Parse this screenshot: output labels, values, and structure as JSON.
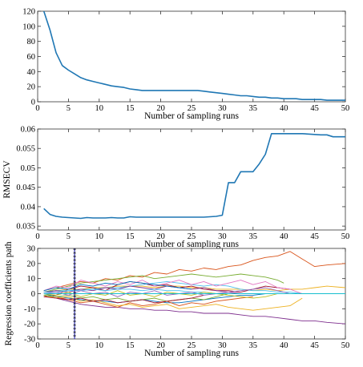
{
  "chart_data": [
    {
      "type": "line",
      "xlabel": "Number of sampling runs",
      "ylabel": "",
      "xlim": [
        0,
        50
      ],
      "ylim": [
        0,
        120
      ],
      "xticks": [
        0,
        5,
        10,
        15,
        20,
        25,
        30,
        35,
        40,
        45,
        50
      ],
      "yticks": [
        0,
        20,
        40,
        60,
        80,
        100,
        120
      ],
      "grid": false,
      "series": [
        {
          "color": "#1f77b4",
          "x": [
            1,
            2,
            3,
            4,
            5,
            6,
            7,
            8,
            9,
            10,
            11,
            12,
            13,
            14,
            15,
            16,
            17,
            18,
            19,
            20,
            21,
            22,
            23,
            24,
            25,
            26,
            27,
            28,
            29,
            30,
            31,
            32,
            33,
            34,
            35,
            36,
            37,
            38,
            39,
            40,
            41,
            42,
            43,
            44,
            45,
            46,
            47,
            48,
            49,
            50
          ],
          "y": [
            120,
            95,
            65,
            48,
            42,
            37,
            32,
            29,
            27,
            25,
            23,
            21,
            20,
            19,
            17,
            16,
            15,
            15,
            15,
            15,
            15,
            15,
            15,
            15,
            15,
            15,
            14,
            13,
            12,
            11,
            10,
            9,
            8,
            8,
            7,
            6,
            6,
            5,
            5,
            4,
            4,
            4,
            3,
            3,
            3,
            3,
            2,
            2,
            2,
            2
          ]
        }
      ]
    },
    {
      "type": "line",
      "xlabel": "Number of sampling runs",
      "ylabel": "RMSECV",
      "xlim": [
        0,
        50
      ],
      "ylim": [
        0.034,
        0.06
      ],
      "xticks": [
        0,
        5,
        10,
        15,
        20,
        25,
        30,
        35,
        40,
        45,
        50
      ],
      "yticks": [
        0.035,
        0.04,
        0.045,
        0.05,
        0.055,
        0.06
      ],
      "ytick_labels": [
        "0.035",
        "0.04",
        "0.045",
        "0.05",
        "0.055",
        "0.06"
      ],
      "grid": false,
      "series": [
        {
          "color": "#1f77b4",
          "x": [
            1,
            2,
            3,
            4,
            5,
            6,
            7,
            8,
            9,
            10,
            11,
            12,
            13,
            14,
            15,
            16,
            17,
            18,
            19,
            20,
            21,
            22,
            23,
            24,
            25,
            26,
            27,
            28,
            29,
            30,
            31,
            32,
            33,
            34,
            35,
            36,
            37,
            38,
            39,
            40,
            41,
            42,
            43,
            44,
            45,
            46,
            47,
            48,
            49,
            50
          ],
          "y": [
            0.0395,
            0.038,
            0.0375,
            0.0373,
            0.0372,
            0.0371,
            0.037,
            0.0372,
            0.0371,
            0.0371,
            0.0371,
            0.0372,
            0.0371,
            0.0371,
            0.0374,
            0.0373,
            0.0373,
            0.0373,
            0.0373,
            0.0373,
            0.0373,
            0.0373,
            0.0373,
            0.0373,
            0.0373,
            0.0373,
            0.0373,
            0.0374,
            0.0375,
            0.0378,
            0.0462,
            0.0462,
            0.049,
            0.049,
            0.049,
            0.051,
            0.0535,
            0.0588,
            0.0588,
            0.0588,
            0.0588,
            0.0588,
            0.0588,
            0.0587,
            0.0586,
            0.0585,
            0.0585,
            0.058,
            0.058,
            0.058
          ]
        }
      ]
    },
    {
      "type": "line",
      "xlabel": "Number of sampling runs",
      "ylabel": "Regression coefficients path",
      "xlim": [
        0,
        50
      ],
      "ylim": [
        -30,
        30
      ],
      "xticks": [
        0,
        5,
        10,
        15,
        20,
        25,
        30,
        35,
        40,
        45,
        50
      ],
      "yticks": [
        -30,
        -20,
        -10,
        0,
        10,
        20,
        30
      ],
      "grid": false,
      "marker_line": {
        "x": 6,
        "color": "#3333cc",
        "marker": "asterisk"
      },
      "series": [
        {
          "color": "#d95319",
          "x": [
            1,
            3,
            5,
            7,
            9,
            11,
            13,
            15,
            17,
            19,
            21,
            23,
            25,
            27,
            29,
            31,
            33,
            35,
            37,
            39,
            41,
            43,
            45,
            47,
            50
          ],
          "y": [
            2,
            4,
            6,
            8,
            7,
            10,
            9,
            12,
            11,
            14,
            13,
            16,
            15,
            17,
            16,
            18,
            19,
            22,
            24,
            25,
            28,
            23,
            18,
            19,
            20
          ]
        },
        {
          "color": "#7e2f8e",
          "x": [
            1,
            3,
            5,
            7,
            9,
            11,
            13,
            15,
            17,
            19,
            21,
            23,
            25,
            27,
            29,
            31,
            33,
            35,
            37,
            39,
            41,
            43,
            45,
            47,
            50
          ],
          "y": [
            -1,
            -3,
            -5,
            -7,
            -8,
            -9,
            -9,
            -10,
            -10,
            -11,
            -11,
            -12,
            -12,
            -13,
            -13,
            -13,
            -14,
            -15,
            -15,
            -16,
            -17,
            -18,
            -18,
            -19,
            -20
          ]
        },
        {
          "color": "#edb120",
          "x": [
            1,
            3,
            5,
            7,
            9,
            11,
            13,
            15,
            17,
            19,
            21,
            23,
            25,
            27,
            29,
            31,
            33,
            35,
            37,
            39,
            41,
            43,
            45,
            47,
            50
          ],
          "y": [
            1,
            2,
            3,
            3,
            4,
            4,
            5,
            5,
            5,
            4,
            5,
            5,
            4,
            4,
            3,
            3,
            3,
            2,
            3,
            2,
            3,
            3,
            4,
            5,
            4
          ]
        },
        {
          "color": "#77ac30",
          "x": [
            1,
            3,
            5,
            7,
            9,
            11,
            13,
            15,
            17,
            19,
            21,
            23,
            25,
            27,
            29,
            31,
            33,
            35,
            37,
            39,
            40
          ],
          "y": [
            1,
            3,
            5,
            7,
            8,
            9,
            10,
            11,
            12,
            10,
            11,
            12,
            13,
            12,
            11,
            12,
            13,
            12,
            11,
            9,
            7
          ]
        },
        {
          "color": "#a2142f",
          "x": [
            1,
            3,
            5,
            7,
            9,
            11,
            13,
            15,
            17,
            19,
            21,
            23,
            25,
            27,
            29,
            31,
            33,
            35,
            37,
            39,
            41
          ],
          "y": [
            -2,
            -1,
            3,
            5,
            4,
            2,
            6,
            8,
            7,
            5,
            6,
            4,
            5,
            3,
            2,
            2,
            1,
            3,
            5,
            4,
            3
          ]
        },
        {
          "color": "#4dbeee",
          "x": [
            1,
            3,
            5,
            7,
            9,
            11,
            13,
            15,
            17,
            19,
            21,
            23,
            25,
            27,
            29,
            31,
            33,
            35,
            37,
            39,
            41,
            43,
            45,
            47,
            50
          ],
          "y": [
            1,
            2,
            2,
            3,
            3,
            4,
            4,
            5,
            6,
            7,
            8,
            7,
            6,
            5,
            6,
            5,
            3,
            2,
            2,
            1,
            1,
            0,
            0,
            0,
            0
          ]
        },
        {
          "color": "#0072bd",
          "x": [
            1,
            3,
            5,
            7,
            9,
            11,
            13,
            15,
            17,
            19,
            21,
            23,
            25,
            27,
            29,
            31,
            33,
            35,
            37
          ],
          "y": [
            0,
            -2,
            -3,
            -4,
            -5,
            -5,
            -6,
            -5,
            -4,
            -5,
            -6,
            -6,
            -5,
            -4,
            -3,
            -2,
            -1,
            -1,
            0
          ]
        },
        {
          "color": "#e377c2",
          "x": [
            1,
            3,
            5,
            7,
            9,
            11,
            13,
            15,
            17,
            19,
            21,
            23,
            25,
            27,
            29,
            31,
            33,
            35,
            37,
            39,
            41,
            43
          ],
          "y": [
            2,
            5,
            4,
            9,
            7,
            5,
            8,
            6,
            9,
            5,
            7,
            9,
            6,
            8,
            5,
            7,
            9,
            6,
            8,
            4,
            3,
            0
          ]
        },
        {
          "color": "#d95319",
          "x": [
            1,
            3,
            5,
            7,
            9,
            11,
            13,
            15,
            17,
            19,
            21,
            23,
            25,
            27,
            29,
            31,
            33,
            35
          ],
          "y": [
            -1,
            -2,
            -4,
            -6,
            -5,
            -7,
            -9,
            -6,
            -8,
            -7,
            -5,
            -8,
            -6,
            -7,
            -5,
            -4,
            -3,
            -2
          ]
        },
        {
          "color": "#edb120",
          "x": [
            1,
            3,
            5,
            7,
            9,
            11,
            13,
            15,
            17,
            19,
            21,
            23,
            25,
            27,
            29,
            31,
            33,
            35,
            37,
            39,
            41,
            43
          ],
          "y": [
            -1,
            -3,
            -2,
            -5,
            -4,
            -6,
            -8,
            -7,
            -9,
            -8,
            -7,
            -10,
            -9,
            -8,
            -7,
            -9,
            -10,
            -11,
            -10,
            -9,
            -8,
            -3
          ]
        },
        {
          "color": "#7e2f8e",
          "x": [
            1,
            3,
            5,
            7,
            9,
            11,
            13,
            15,
            17,
            19,
            21,
            23,
            25,
            27,
            29,
            31,
            33
          ],
          "y": [
            1,
            2,
            1,
            3,
            2,
            4,
            3,
            5,
            4,
            3,
            5,
            4,
            3,
            4,
            2,
            1,
            0
          ]
        },
        {
          "color": "#77ac30",
          "x": [
            1,
            3,
            5,
            7,
            9,
            11,
            13,
            15,
            17,
            19,
            21,
            23,
            25,
            27,
            29,
            31
          ],
          "y": [
            -1,
            -2,
            -1,
            -3,
            -2,
            -4,
            -3,
            -5,
            -4,
            -3,
            -5,
            -4,
            -3,
            -4,
            -2,
            0
          ]
        },
        {
          "color": "#4dbeee",
          "x": [
            1,
            3,
            5,
            7,
            9,
            11,
            13,
            15,
            17,
            19,
            21,
            23,
            25,
            27,
            29
          ],
          "y": [
            1,
            1,
            2,
            2,
            3,
            2,
            3,
            3,
            2,
            3,
            2,
            2,
            1,
            1,
            0
          ]
        },
        {
          "color": "#a2142f",
          "x": [
            1,
            3,
            5,
            7,
            9,
            11,
            13,
            15,
            17,
            19,
            21,
            23,
            25,
            27
          ],
          "y": [
            -2,
            -3,
            -4,
            -3,
            -5,
            -4,
            -6,
            -5,
            -4,
            -6,
            -5,
            -4,
            -3,
            -1
          ]
        },
        {
          "color": "#0072bd",
          "x": [
            1,
            3,
            5,
            7,
            9,
            11,
            13,
            15,
            17,
            19,
            21,
            23,
            25
          ],
          "y": [
            2,
            4,
            3,
            6,
            5,
            7,
            6,
            8,
            7,
            6,
            5,
            4,
            3
          ]
        },
        {
          "color": "#9467bd",
          "x": [
            1,
            3,
            5,
            7,
            9,
            11,
            13,
            15,
            17,
            19,
            21,
            23,
            25,
            27,
            29,
            31,
            33,
            35,
            37,
            39,
            41
          ],
          "y": [
            0,
            1,
            -1,
            2,
            0,
            1,
            -2,
            1,
            0,
            2,
            -1,
            0,
            1,
            -1,
            0,
            1,
            2,
            3,
            4,
            2,
            0
          ]
        },
        {
          "color": "#bcbd22",
          "x": [
            1,
            3,
            5,
            7,
            9,
            11,
            13,
            15,
            17,
            19,
            21,
            23,
            25,
            27,
            29,
            31,
            33,
            35,
            37,
            39
          ],
          "y": [
            0,
            -1,
            1,
            -2,
            0,
            -1,
            2,
            -1,
            0,
            -2,
            1,
            0,
            -1,
            1,
            0,
            -1,
            -2,
            -3,
            -2,
            0
          ]
        },
        {
          "color": "#17becf",
          "x": [
            1,
            3,
            5,
            7,
            9,
            11,
            13,
            15,
            17,
            19,
            21,
            23,
            25,
            27,
            29,
            31,
            33,
            35,
            37,
            39,
            41,
            43,
            45,
            47,
            50
          ],
          "y": [
            0,
            0,
            0,
            0,
            0,
            0,
            0,
            0,
            0,
            0,
            0,
            0,
            0,
            0,
            0,
            0,
            0,
            0,
            0,
            0,
            0,
            0,
            0,
            0,
            0
          ]
        }
      ]
    }
  ]
}
